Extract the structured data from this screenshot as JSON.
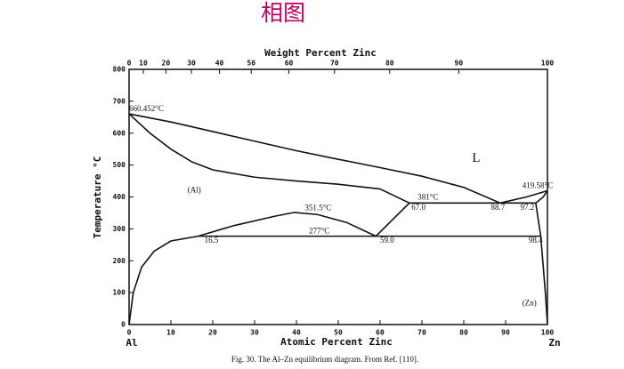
{
  "chart_data": {
    "type": "line",
    "title": "相图",
    "x2label": "Weight Percent Zinc",
    "ylabel": "Temperature °C",
    "xlabel": "Atomic Percent Zinc",
    "left_element": "Al",
    "right_element": "Zn",
    "caption": "Fig. 30. The Al–Zn equilibrium diagram. From Ref. [110].",
    "xlim": [
      0,
      100
    ],
    "ylim": [
      0,
      800
    ],
    "xticks": [
      0,
      10,
      20,
      30,
      40,
      50,
      60,
      70,
      80,
      90,
      100
    ],
    "yticks": [
      0,
      100,
      200,
      300,
      400,
      500,
      600,
      700,
      800
    ],
    "x2ticks": [
      {
        "value": 0,
        "label": "0"
      },
      {
        "value": 3.4,
        "label": "10"
      },
      {
        "value": 8.8,
        "label": "20"
      },
      {
        "value": 14.9,
        "label": "30"
      },
      {
        "value": 21.6,
        "label": "40"
      },
      {
        "value": 29.2,
        "label": "50"
      },
      {
        "value": 38.2,
        "label": "60"
      },
      {
        "value": 49.1,
        "label": "70"
      },
      {
        "value": 62.3,
        "label": "80"
      },
      {
        "value": 78.8,
        "label": "90"
      },
      {
        "value": 100,
        "label": "100"
      }
    ],
    "color": "#111111",
    "series": [
      {
        "x": [
          0,
          10,
          20,
          30,
          40,
          50,
          60,
          70,
          80,
          88.7,
          95,
          100
        ],
        "values": [
          660.45,
          635,
          605,
          575,
          545,
          518,
          492,
          465,
          430,
          381,
          400,
          419.58
        ]
      },
      {
        "x": [
          0,
          5,
          10,
          15,
          20,
          30,
          40,
          50,
          60,
          67
        ],
        "values": [
          660.45,
          600,
          550,
          510,
          485,
          462,
          450,
          440,
          425,
          381
        ]
      },
      {
        "x": [
          67,
          97.2
        ],
        "values": [
          381,
          381
        ]
      },
      {
        "x": [
          97.2,
          99,
          100
        ],
        "values": [
          381,
          400,
          419.58
        ]
      },
      {
        "x": [
          97.2,
          98.4,
          99.5,
          100
        ],
        "values": [
          381,
          277,
          100,
          0
        ]
      },
      {
        "x": [
          16.5,
          98.4
        ],
        "values": [
          277,
          277
        ]
      },
      {
        "x": [
          16.5,
          25,
          35,
          39.5,
          45,
          52,
          59
        ],
        "values": [
          277,
          310,
          340,
          351.5,
          345,
          320,
          277
        ]
      },
      {
        "x": [
          59,
          67
        ],
        "values": [
          277,
          381
        ]
      },
      {
        "x": [
          0,
          1,
          3,
          6,
          10,
          16.5
        ],
        "values": [
          0,
          100,
          180,
          230,
          262,
          277
        ]
      }
    ],
    "annotations": [
      {
        "text": "660.452°C",
        "x": 0,
        "y": 675
      },
      {
        "text": "L",
        "x": 82,
        "y": 520
      },
      {
        "text": "(Al)",
        "x": 14,
        "y": 420
      },
      {
        "text": "381°C",
        "x": 69,
        "y": 397
      },
      {
        "text": "419.58°C",
        "x": 94,
        "y": 434
      },
      {
        "text": "351.5°C",
        "x": 42,
        "y": 364
      },
      {
        "text": "277°C",
        "x": 43,
        "y": 292
      },
      {
        "text": "16.5",
        "x": 18,
        "y": 262
      },
      {
        "text": "59.0",
        "x": 60,
        "y": 262
      },
      {
        "text": "67.0",
        "x": 67.5,
        "y": 365
      },
      {
        "text": "88.7",
        "x": 86.5,
        "y": 365
      },
      {
        "text": "97.2",
        "x": 93.5,
        "y": 365
      },
      {
        "text": "98.4",
        "x": 95.5,
        "y": 262
      },
      {
        "text": "(Zn)",
        "x": 94,
        "y": 65
      }
    ]
  }
}
